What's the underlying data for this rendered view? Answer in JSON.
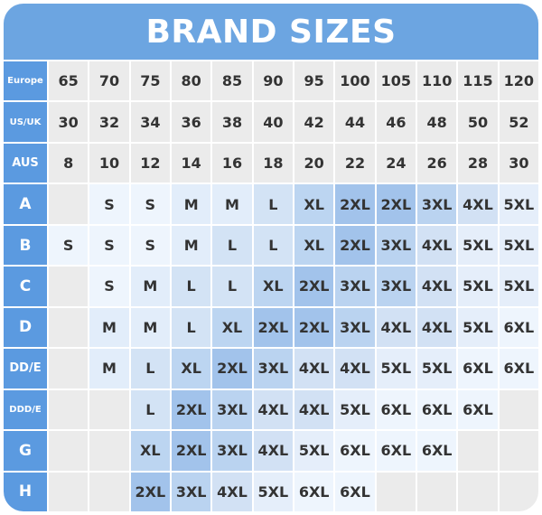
{
  "title": "BRAND SIZES",
  "header_rows": [
    {
      "label": "Europe",
      "values": [
        "65",
        "70",
        "75",
        "80",
        "85",
        "90",
        "95",
        "100",
        "105",
        "110",
        "115",
        "120"
      ]
    },
    {
      "label": "US/UK",
      "values": [
        "30",
        "32",
        "34",
        "36",
        "38",
        "40",
        "42",
        "44",
        "46",
        "48",
        "50",
        "52"
      ]
    },
    {
      "label": "AUS",
      "values": [
        "8",
        "10",
        "12",
        "14",
        "16",
        "18",
        "20",
        "22",
        "24",
        "26",
        "28",
        "30"
      ]
    }
  ],
  "cup_rows": [
    {
      "label": "A",
      "values": [
        "",
        "S",
        "S",
        "M",
        "M",
        "L",
        "XL",
        "2XL",
        "2XL",
        "3XL",
        "4XL",
        "5XL"
      ]
    },
    {
      "label": "B",
      "values": [
        "S",
        "S",
        "S",
        "M",
        "L",
        "L",
        "XL",
        "2XL",
        "3XL",
        "4XL",
        "5XL",
        "5XL"
      ]
    },
    {
      "label": "C",
      "values": [
        "",
        "S",
        "M",
        "L",
        "L",
        "XL",
        "2XL",
        "3XL",
        "3XL",
        "4XL",
        "5XL",
        "5XL"
      ]
    },
    {
      "label": "D",
      "values": [
        "",
        "M",
        "M",
        "L",
        "XL",
        "2XL",
        "2XL",
        "3XL",
        "4XL",
        "4XL",
        "5XL",
        "6XL"
      ]
    },
    {
      "label": "DD/E",
      "values": [
        "",
        "M",
        "L",
        "XL",
        "2XL",
        "3XL",
        "4XL",
        "4XL",
        "5XL",
        "5XL",
        "6XL",
        "6XL"
      ]
    },
    {
      "label": "DDD/E",
      "values": [
        "",
        "",
        "L",
        "2XL",
        "3XL",
        "4XL",
        "4XL",
        "5XL",
        "6XL",
        "6XL",
        "6XL",
        ""
      ]
    },
    {
      "label": "G",
      "values": [
        "",
        "",
        "XL",
        "2XL",
        "3XL",
        "4XL",
        "5XL",
        "6XL",
        "6XL",
        "6XL",
        "",
        ""
      ]
    },
    {
      "label": "H",
      "values": [
        "",
        "",
        "2XL",
        "3XL",
        "4XL",
        "5XL",
        "6XL",
        "6XL",
        "",
        "",
        "",
        ""
      ]
    }
  ],
  "colors": {
    "title_bg": "#6ca5e1",
    "label_bg": "#5b9ae0",
    "header_cell_bg": "#ebebeb",
    "empty_cell_bg": "#ebebeb",
    "text": "#333333",
    "size_shades": {
      "S": "#eef5fd",
      "M": "#e2edfa",
      "L": "#d3e3f5",
      "XL": "#bcd5f1",
      "2XL": "#a2c3eb",
      "3XL": "#bad3f0",
      "4XL": "#d2e1f4",
      "5XL": "#e5eefa",
      "6XL": "#eef5fd"
    }
  }
}
